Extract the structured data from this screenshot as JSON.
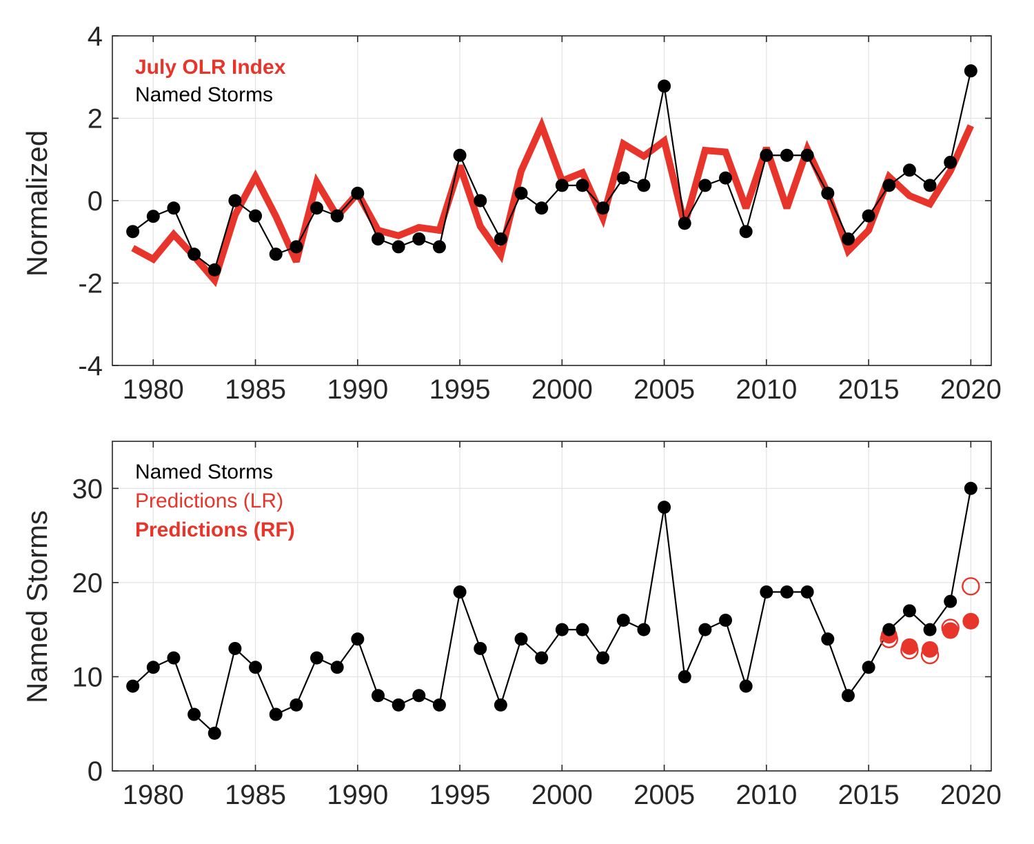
{
  "colors": {
    "olr": "#e8352b",
    "storms": "#000000",
    "pred": "#e8352b",
    "axis": "#262626",
    "grid": "#e2e2e2"
  },
  "chart_data": [
    {
      "type": "line",
      "panel": "top",
      "ylabel": "Normalized",
      "xlim": [
        1978,
        2021
      ],
      "ylim": [
        -4,
        4
      ],
      "xticks": [
        1980,
        1985,
        1990,
        1995,
        2000,
        2005,
        2010,
        2015,
        2020
      ],
      "yticks": [
        -4,
        -2,
        0,
        2,
        4
      ],
      "grid": true,
      "legend_position": "top-left",
      "legend": [
        "July OLR Index",
        "Named Storms"
      ],
      "x": [
        1979,
        1980,
        1981,
        1982,
        1983,
        1984,
        1985,
        1986,
        1987,
        1988,
        1989,
        1990,
        1991,
        1992,
        1993,
        1994,
        1995,
        1996,
        1997,
        1998,
        1999,
        2000,
        2001,
        2002,
        2003,
        2004,
        2005,
        2006,
        2007,
        2008,
        2009,
        2010,
        2011,
        2012,
        2013,
        2014,
        2015,
        2016,
        2017,
        2018,
        2019,
        2020
      ],
      "series": [
        {
          "name": "July OLR Index",
          "values": [
            -1.15,
            -1.42,
            -0.82,
            -1.35,
            -1.93,
            -0.35,
            0.58,
            -0.38,
            -1.48,
            0.45,
            -0.38,
            0.18,
            -0.72,
            -0.85,
            -0.65,
            -0.72,
            0.85,
            -0.62,
            -1.32,
            0.72,
            1.82,
            0.48,
            0.68,
            -0.42,
            1.38,
            1.08,
            1.45,
            -0.58,
            1.22,
            1.18,
            -0.18,
            1.28,
            -0.18,
            1.25,
            0.18,
            -1.22,
            -0.72,
            0.58,
            0.12,
            -0.08,
            0.72,
            1.82
          ]
        },
        {
          "name": "Named Storms",
          "values": [
            -0.75,
            -0.38,
            -0.18,
            -1.3,
            -1.68,
            0.0,
            -0.37,
            -1.3,
            -1.12,
            -0.18,
            -0.37,
            0.18,
            -0.93,
            -1.12,
            -0.93,
            -1.12,
            1.1,
            0.0,
            -0.93,
            0.18,
            -0.18,
            0.37,
            0.37,
            -0.18,
            0.55,
            0.37,
            2.78,
            -0.55,
            0.37,
            0.55,
            -0.75,
            1.1,
            1.1,
            1.1,
            0.18,
            -0.93,
            -0.37,
            0.37,
            0.74,
            0.37,
            0.93,
            3.15
          ]
        }
      ]
    },
    {
      "type": "line",
      "panel": "bottom",
      "ylabel": "Named Storms",
      "xlim": [
        1978,
        2021
      ],
      "ylim": [
        0,
        35
      ],
      "xticks": [
        1980,
        1985,
        1990,
        1995,
        2000,
        2005,
        2010,
        2015,
        2020
      ],
      "yticks": [
        0,
        10,
        20,
        30
      ],
      "grid": true,
      "legend_position": "top-left",
      "legend": [
        "Named Storms",
        "Predictions (LR)",
        "Predictions (RF)"
      ],
      "x": [
        1979,
        1980,
        1981,
        1982,
        1983,
        1984,
        1985,
        1986,
        1987,
        1988,
        1989,
        1990,
        1991,
        1992,
        1993,
        1994,
        1995,
        1996,
        1997,
        1998,
        1999,
        2000,
        2001,
        2002,
        2003,
        2004,
        2005,
        2006,
        2007,
        2008,
        2009,
        2010,
        2011,
        2012,
        2013,
        2014,
        2015,
        2016,
        2017,
        2018,
        2019,
        2020
      ],
      "series": [
        {
          "name": "Named Storms",
          "values": [
            9,
            11,
            12,
            6,
            4,
            13,
            11,
            6,
            7,
            12,
            11,
            14,
            8,
            7,
            8,
            7,
            19,
            13,
            7,
            14,
            12,
            15,
            15,
            12,
            16,
            15,
            28,
            10,
            15,
            16,
            9,
            19,
            19,
            19,
            14,
            8,
            11,
            15,
            17,
            15,
            18,
            30
          ]
        },
        {
          "name": "Predictions (LR)",
          "x": [
            2016,
            2017,
            2018,
            2019,
            2020
          ],
          "values": [
            14.0,
            12.8,
            12.3,
            15.2,
            19.6
          ]
        },
        {
          "name": "Predictions (RF)",
          "x": [
            2016,
            2017,
            2018,
            2019,
            2020
          ],
          "values": [
            14.4,
            13.2,
            12.9,
            14.9,
            15.9
          ]
        }
      ]
    }
  ]
}
